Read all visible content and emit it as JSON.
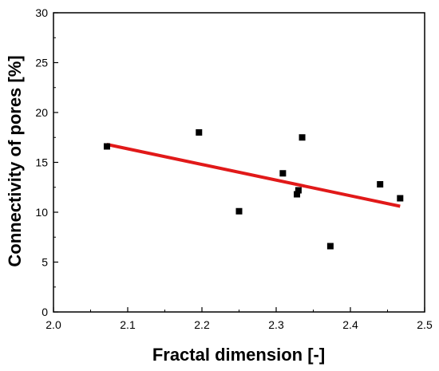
{
  "chart_data": {
    "type": "scatter",
    "title": "",
    "xlabel": "Fractal dimension [-]",
    "ylabel": "Connectivity of pores [%]",
    "xlim": [
      2.0,
      2.5
    ],
    "ylim": [
      0,
      30
    ],
    "xticks": [
      "2.0",
      "2.1",
      "2.2",
      "2.3",
      "2.4",
      "2.5"
    ],
    "yticks": [
      "0",
      "5",
      "10",
      "15",
      "20",
      "25",
      "30"
    ],
    "grid": false,
    "legend": "none",
    "series": [
      {
        "kind": "scatter",
        "marker": "square",
        "color": "#000000",
        "x": [
          2.072,
          2.196,
          2.25,
          2.309,
          2.328,
          2.33,
          2.335,
          2.373,
          2.44,
          2.467
        ],
        "y": [
          16.6,
          18.0,
          10.1,
          13.9,
          11.8,
          12.2,
          17.5,
          6.6,
          12.8,
          11.4
        ]
      },
      {
        "kind": "line",
        "fit": "linear",
        "color": "#e11919",
        "x": [
          2.072,
          2.467
        ],
        "y": [
          16.8,
          10.6
        ]
      }
    ]
  }
}
